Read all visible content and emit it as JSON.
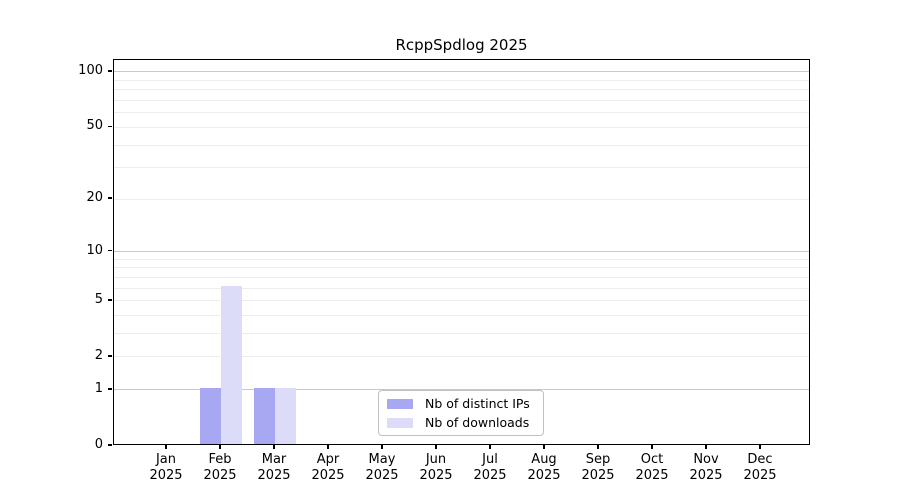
{
  "chart_data": {
    "type": "bar",
    "title": "RcppSpdlog 2025",
    "x": {
      "months": [
        "Jan",
        "Feb",
        "Mar",
        "Apr",
        "May",
        "Jun",
        "Jul",
        "Aug",
        "Sep",
        "Oct",
        "Nov",
        "Dec"
      ],
      "year": "2025"
    },
    "categories": [
      "Jan 2025",
      "Feb 2025",
      "Mar 2025",
      "Apr 2025",
      "May 2025",
      "Jun 2025",
      "Jul 2025",
      "Aug 2025",
      "Sep 2025",
      "Oct 2025",
      "Nov 2025",
      "Dec 2025"
    ],
    "series": [
      {
        "name": "Nb of distinct IPs",
        "color": "#a8a8f2",
        "values": [
          0,
          1,
          1,
          0,
          0,
          0,
          0,
          0,
          0,
          0,
          0,
          0
        ]
      },
      {
        "name": "Nb of downloads",
        "color": "#dcdcf8",
        "values": [
          0,
          6,
          1,
          0,
          0,
          0,
          0,
          0,
          0,
          0,
          0,
          0
        ]
      }
    ],
    "y_axis": {
      "scale": "log1p",
      "tick_values": [
        0,
        1,
        2,
        5,
        10,
        20,
        50,
        100
      ],
      "tick_labels": [
        "0",
        "1",
        "2",
        "5",
        "10",
        "20",
        "50",
        "100"
      ],
      "major_gridline_values": [
        1,
        10,
        100
      ],
      "minor_gridline_values": [
        2,
        3,
        4,
        5,
        6,
        7,
        8,
        9,
        20,
        30,
        40,
        50,
        60,
        70,
        80,
        90
      ],
      "ylim": [
        0,
        115
      ]
    },
    "legend": {
      "position": "inside-bottom-center",
      "entries": [
        "Nb of distinct IPs",
        "Nb of downloads"
      ]
    },
    "grid": "on",
    "colors": {
      "major_gridline": "#c9c9c9",
      "minor_gridline": "#ededed",
      "axis_frame": "#000000",
      "background": "#ffffff"
    }
  }
}
